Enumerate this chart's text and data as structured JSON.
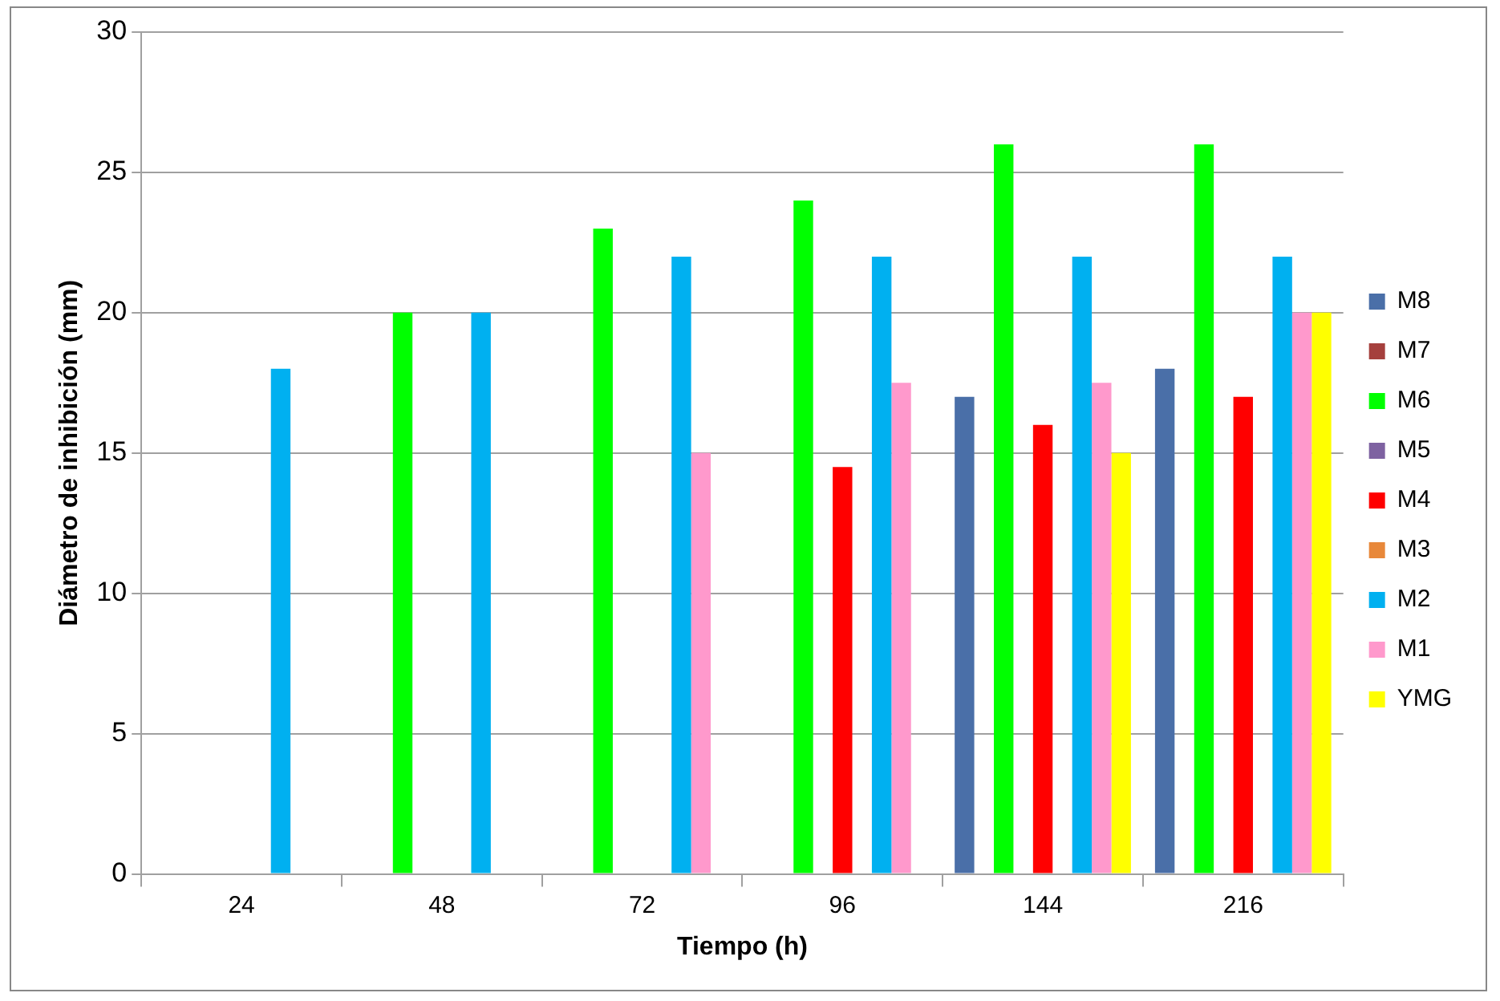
{
  "chart_data": {
    "type": "bar",
    "xlabel": "Tiempo (h)",
    "ylabel": "Diámetro de inhibición (mm)",
    "categories": [
      "24",
      "48",
      "72",
      "96",
      "144",
      "216"
    ],
    "series": [
      {
        "name": "M8",
        "color": "#4a6fa8",
        "values": [
          null,
          null,
          null,
          null,
          17,
          18
        ]
      },
      {
        "name": "M7",
        "color": "#a5403d",
        "values": [
          null,
          null,
          null,
          null,
          null,
          null
        ]
      },
      {
        "name": "M6",
        "color": "#00ff00",
        "values": [
          null,
          20,
          23,
          24,
          26,
          26
        ]
      },
      {
        "name": "M5",
        "color": "#7e62a1",
        "values": [
          null,
          null,
          null,
          null,
          null,
          null
        ]
      },
      {
        "name": "M4",
        "color": "#ff0000",
        "values": [
          null,
          null,
          null,
          14.5,
          16,
          17
        ]
      },
      {
        "name": "M3",
        "color": "#e8883a",
        "values": [
          null,
          null,
          null,
          null,
          null,
          null
        ]
      },
      {
        "name": "M2",
        "color": "#00b0f0",
        "values": [
          18,
          20,
          22,
          22,
          22,
          22
        ]
      },
      {
        "name": "M1",
        "color": "#ff99cc",
        "values": [
          null,
          null,
          15,
          17.5,
          17.5,
          20
        ]
      },
      {
        "name": "YMG",
        "color": "#ffff00",
        "values": [
          null,
          null,
          null,
          null,
          15,
          20
        ]
      }
    ],
    "ylim": [
      0,
      30
    ],
    "yticks": [
      0,
      5,
      10,
      15,
      20,
      25,
      30
    ],
    "grid": "y",
    "legend": "right"
  }
}
